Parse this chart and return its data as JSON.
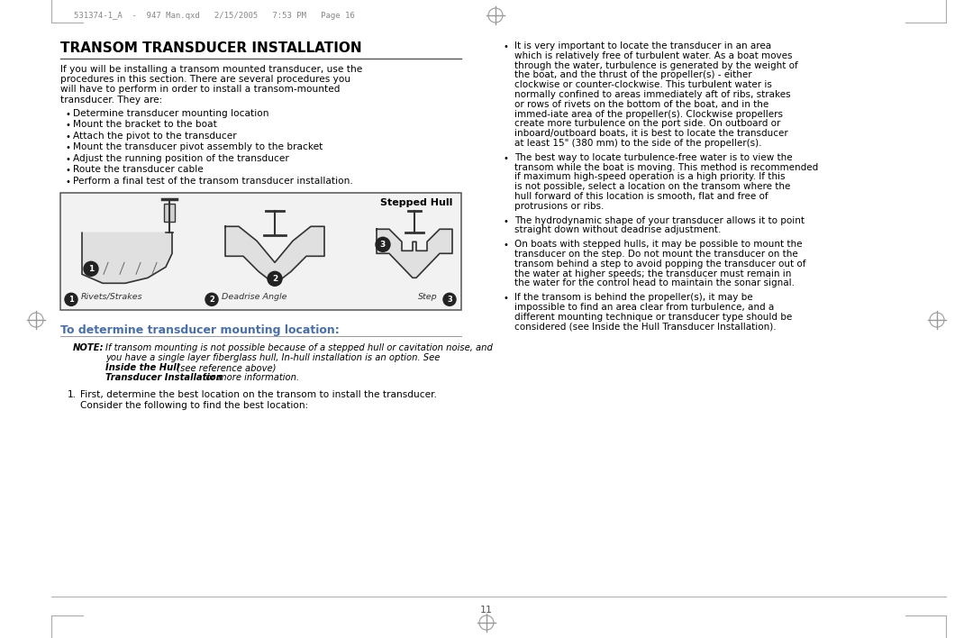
{
  "page_header": "531374-1_A  -  947 Man.qxd   2/15/2005   7:53 PM   Page 16",
  "page_number": "11",
  "title": "TRANSOM TRANSDUCER INSTALLATION",
  "intro_text": "If you will be installing a transom mounted transducer, use the procedures in this section. There are several procedures you will have to perform in order to install a transom-mounted transducer. They are:",
  "bullet_items": [
    "Determine transducer mounting location",
    "Mount the bracket to the boat",
    "Attach the pivot to the transducer",
    "Mount the transducer pivot assembly to the bracket",
    "Adjust the running position of the transducer",
    "Route the transducer cable",
    "Perform a final test of the transom transducer installation."
  ],
  "diagram_label_stepped": "Stepped Hull",
  "diagram_label_1": "Rivets/Strakes",
  "diagram_label_2": "Deadrise Angle",
  "diagram_label_3": "Step",
  "subheading": "To determine transducer mounting location:",
  "note_line1": "NOTE: If transom mounting is not possible because of a stepped hull or cavitation noise, and",
  "note_line2": "you have a single layer fiberglass hull, In-hull installation is an option. See Inside the Hull",
  "note_line3": "Transducer Installation for more information.",
  "step1_text_line1": "First, determine the best location on the transom to install the transducer.",
  "step1_text_line2": "Consider the following to find the best location:",
  "right_bullets": [
    "It is very important to locate the transducer in an area which is relatively free of turbulent water. As a boat moves through the water, turbulence is generated by the weight of the boat, and the thrust of the propeller(s) - either clockwise or counter-clockwise. This turbulent water is normally confined to areas immediately aft of ribs, strakes or rows of rivets on the bottom of the boat, and in the immed-iate area of the propeller(s). Clockwise propellers create more turbulence on the port side. On outboard or inboard/outboard boats, it is best to locate the transducer at least 15\" (380 mm) to the side of the propeller(s).",
    "The best way to locate turbulence-free water is to view the transom while the boat is moving. This method is recommended if maximum high-speed operation is a high priority. If this is not possible, select a location on the transom where the hull forward of this location is smooth, flat and free of protrusions or ribs.",
    "The hydrodynamic shape of your transducer allows it to point straight down without deadrise adjustment.",
    "On boats with stepped hulls, it may be possible to mount the transducer on the step. Do not mount the transducer on the transom behind a step to avoid popping the transducer out of the water at higher speeds; the transducer must remain in the water for the control head to maintain the sonar signal.",
    "If the transom is behind the propeller(s), it may be impossible to find an area clear from turbulence, and a different mounting technique or transducer type should be considered (see Inside the Hull Transducer Installation)."
  ],
  "bg_color": "#ffffff",
  "text_color": "#000000",
  "title_color": "#000000",
  "subheading_color": "#4a6fa5",
  "header_color": "#888888"
}
